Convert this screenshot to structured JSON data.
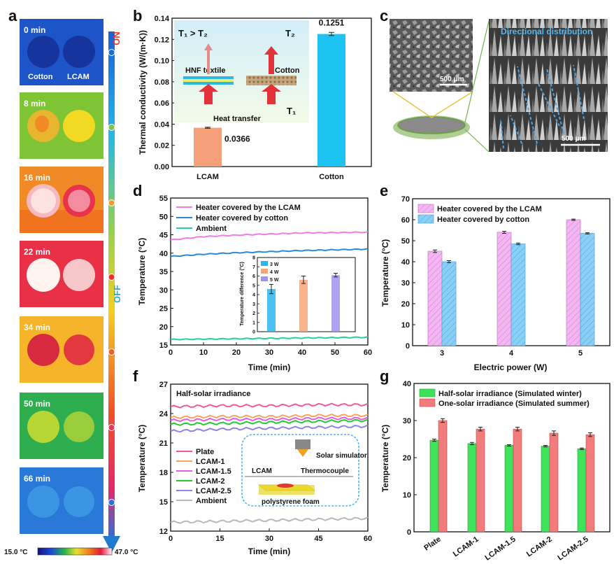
{
  "panel_letters": {
    "a": "a",
    "b": "b",
    "c": "c",
    "d": "d",
    "e": "e",
    "f": "f",
    "g": "g"
  },
  "panel_a": {
    "frames": [
      {
        "time": "0 min",
        "left_label": "Cotton",
        "right_label": "LCAM"
      },
      {
        "time": "8 min"
      },
      {
        "time": "16 min"
      },
      {
        "time": "22 min"
      },
      {
        "time": "34 min"
      },
      {
        "time": "50 min"
      },
      {
        "time": "66 min"
      }
    ],
    "on_label": "ON",
    "off_label": "OFF",
    "scale_min": "15.0 °C",
    "scale_max": "47.0 °C",
    "colors": {
      "arrow": "#1f8fd8",
      "on": "#e8382b",
      "off": "#2aa8e0"
    }
  },
  "panel_c": {
    "scale_small": "500 μm",
    "scale_large": "500 μm",
    "overlay_text": "Directional distribution"
  },
  "chart_data": [
    {
      "panel": "b",
      "type": "bar",
      "ylabel": "Thermal conductivity (W/(m·K))",
      "categories": [
        "LCAM",
        "Cotton"
      ],
      "values": [
        0.0366,
        0.1251
      ],
      "value_labels": [
        "0.0366",
        "0.1251"
      ],
      "errors": [
        0.0005,
        0.0015
      ],
      "colors": [
        "#f6a07a",
        "#1ec4f1"
      ],
      "ylim": [
        0,
        0.14
      ],
      "yticks": [
        "0.00",
        "0.02",
        "0.04",
        "0.06",
        "0.08",
        "0.10",
        "0.12",
        "0.14"
      ],
      "inset": {
        "t_rel": "T₁ > T₂",
        "t2": "T₂",
        "t1": "T₁",
        "hnf": "HNF textile",
        "cotton": "Cotton",
        "heat": "Heat transfer"
      }
    },
    {
      "panel": "d",
      "type": "line",
      "xlabel": "Time (min)",
      "ylabel": "Temperature (°C)",
      "xlim": [
        0,
        60
      ],
      "ylim": [
        15,
        55
      ],
      "xticks": [
        "0",
        "10",
        "20",
        "30",
        "40",
        "50",
        "60"
      ],
      "yticks": [
        "15",
        "20",
        "25",
        "30",
        "35",
        "40",
        "45",
        "50",
        "55"
      ],
      "series": [
        {
          "name": "Heater covered by the LCAM",
          "color": "#f07ce8",
          "x": [
            0,
            10,
            20,
            30,
            40,
            50,
            60
          ],
          "y": [
            43.6,
            44.5,
            44.9,
            45.2,
            45.5,
            45.6,
            45.7
          ]
        },
        {
          "name": "Heater covered by cotton",
          "color": "#2a8ad6",
          "x": [
            0,
            10,
            20,
            30,
            40,
            50,
            60
          ],
          "y": [
            39.1,
            39.7,
            40.1,
            40.4,
            40.7,
            40.9,
            41.1
          ]
        },
        {
          "name": "Ambient",
          "color": "#1fd39a",
          "x": [
            0,
            10,
            20,
            30,
            40,
            50,
            60
          ],
          "y": [
            16.5,
            16.6,
            16.7,
            16.8,
            16.9,
            17.0,
            17.1
          ]
        }
      ],
      "inset": {
        "ylabel": "Temperature difference (°C)",
        "categories": [
          "3 W",
          "4 W",
          "5 W"
        ],
        "values": [
          4.6,
          5.6,
          6.1
        ],
        "errors": [
          0.5,
          0.4,
          0.2
        ],
        "colors": [
          "#2ab5f0",
          "#f6a47a",
          "#9d93f2"
        ],
        "ylim": [
          0,
          8
        ],
        "yticks": [
          "0",
          "1",
          "2",
          "3",
          "4",
          "5",
          "6",
          "7",
          "8"
        ]
      }
    },
    {
      "panel": "e",
      "type": "bar",
      "xlabel": "Electric power (W)",
      "ylabel": "Temperature (°C)",
      "categories": [
        "3",
        "4",
        "5"
      ],
      "series": [
        {
          "name": "Heater covered by the LCAM",
          "color": "#f0a6ee",
          "values": [
            45.0,
            54.0,
            60.0
          ],
          "errors": [
            0.6,
            0.5,
            0.3
          ]
        },
        {
          "name": "Heater covered by cotton",
          "color": "#7fcaf3",
          "values": [
            40.0,
            48.5,
            53.5
          ],
          "errors": [
            0.5,
            0.4,
            0.3
          ]
        }
      ],
      "ylim": [
        0,
        70
      ],
      "yticks": [
        "0",
        "10",
        "20",
        "30",
        "40",
        "50",
        "60",
        "70"
      ]
    },
    {
      "panel": "f",
      "type": "line",
      "title": "Half-solar irradiance",
      "xlabel": "Time (min)",
      "ylabel": "Temperature (°C)",
      "xlim": [
        0,
        60
      ],
      "ylim": [
        12,
        27
      ],
      "xticks": [
        "0",
        "15",
        "30",
        "45",
        "60"
      ],
      "yticks": [
        "12",
        "15",
        "18",
        "21",
        "24",
        "27"
      ],
      "series": [
        {
          "name": "Plate",
          "color": "#f05a9a",
          "x": [
            0,
            15,
            30,
            45,
            60
          ],
          "y": [
            24.7,
            24.8,
            24.8,
            24.9,
            24.9
          ]
        },
        {
          "name": "LCAM-1",
          "color": "#f5a560",
          "x": [
            0,
            15,
            30,
            45,
            60
          ],
          "y": [
            23.6,
            23.7,
            23.7,
            23.8,
            23.8
          ]
        },
        {
          "name": "LCAM-1.5",
          "color": "#e65ce0",
          "x": [
            0,
            15,
            30,
            45,
            60
          ],
          "y": [
            23.3,
            23.4,
            23.4,
            23.5,
            23.5
          ]
        },
        {
          "name": "LCAM-2",
          "color": "#22cc2e",
          "x": [
            0,
            15,
            30,
            45,
            60
          ],
          "y": [
            22.9,
            23.0,
            23.1,
            23.2,
            23.3
          ]
        },
        {
          "name": "LCAM-2.5",
          "color": "#8c86e6",
          "x": [
            0,
            15,
            30,
            45,
            60
          ],
          "y": [
            22.2,
            22.4,
            22.5,
            22.6,
            22.7
          ]
        },
        {
          "name": "Ambient",
          "color": "#b8b8b8",
          "x": [
            0,
            15,
            30,
            45,
            60
          ],
          "y": [
            12.9,
            13.0,
            13.1,
            13.2,
            13.3
          ]
        }
      ],
      "inset": {
        "sim": "Solar simulator",
        "lcam": "LCAM",
        "tc": "Thermocouple",
        "foam": "polystyrene foam"
      }
    },
    {
      "panel": "g",
      "type": "bar",
      "ylabel": "Temperature (°C)",
      "categories": [
        "Plate",
        "LCAM-1",
        "LCAM-1.5",
        "LCAM-2",
        "LCAM-2.5"
      ],
      "series": [
        {
          "name": "Half-solar irradiance (Simulated winter)",
          "color": "#3fe25a",
          "values": [
            24.7,
            23.8,
            23.3,
            23.1,
            22.4
          ],
          "errors": [
            0.3,
            0.3,
            0.2,
            0.2,
            0.2
          ]
        },
        {
          "name": "One-solar irradiance (Simulated summer)",
          "color": "#f27b7b",
          "values": [
            30.0,
            27.7,
            27.7,
            26.6,
            26.2
          ],
          "errors": [
            0.5,
            0.5,
            0.5,
            0.6,
            0.5
          ]
        }
      ],
      "ylim": [
        0,
        40
      ],
      "yticks": [
        "0",
        "10",
        "20",
        "30",
        "40"
      ]
    }
  ]
}
